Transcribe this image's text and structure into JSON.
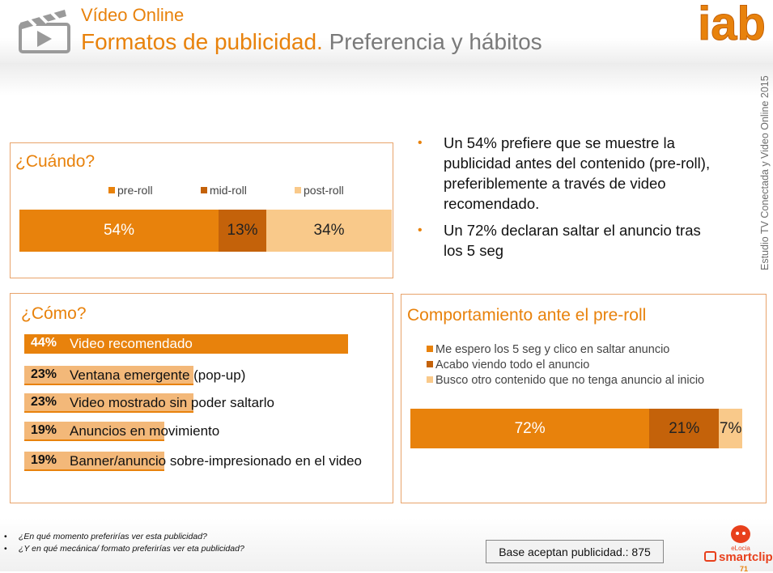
{
  "header": {
    "pre_title": "Vídeo Online",
    "title_main": "Formatos de publicidad.",
    "title_sub": "Preferencia y hábitos",
    "logo_text": "iab",
    "side_text": "Estudio TV Conectada y Video Online 2015"
  },
  "when": {
    "title": "¿Cuándo?",
    "legend": [
      "pre-roll",
      "mid-roll",
      "post-roll"
    ],
    "colors": [
      "#e8820c",
      "#c4620a",
      "#f9c98a"
    ],
    "values": [
      54,
      13,
      34
    ],
    "labels": [
      "54%",
      "13%",
      "34%"
    ]
  },
  "bullets": [
    "Un 54%  prefiere que se muestre la publicidad antes del contenido (pre-roll), preferiblemente a través de video recomendado.",
    "Un 72% declaran saltar el anuncio tras los 5 seg"
  ],
  "how": {
    "title": "¿Cómo?",
    "items": [
      {
        "pct_label": "44%",
        "value": 44,
        "label": "Video recomendado"
      },
      {
        "pct_label": "23%",
        "value": 23,
        "label": "Ventana emergente (pop-up)"
      },
      {
        "pct_label": "23%",
        "value": 23,
        "label": "Video mostrado sin poder saltarlo"
      },
      {
        "pct_label": "19%",
        "value": 19,
        "label": "Anuncios en movimiento"
      },
      {
        "pct_label": "19%",
        "value": 19,
        "label": "Banner/anuncio sobre-impresionado en el video"
      }
    ]
  },
  "preroll": {
    "title": "Comportamiento ante el pre-roll",
    "legend": [
      "Me espero los 5 seg y clico en saltar anuncio",
      "Acabo viendo todo el anuncio",
      "Busco otro contenido que no tenga anuncio al inicio"
    ],
    "colors": [
      "#e8820c",
      "#c4620a",
      "#f9c98a"
    ],
    "values": [
      72,
      21,
      7
    ],
    "labels": [
      "72%",
      "21%",
      "7%"
    ]
  },
  "footer": {
    "questions": [
      "¿En qué momento preferirías ver esta publicidad?",
      "¿Y en qué mecánica/ formato preferirías ver eta publicidad?"
    ],
    "base": "Base aceptan publicidad.: 875",
    "brand_small": "eLocia",
    "brand": "smartclip",
    "page": "71"
  }
}
